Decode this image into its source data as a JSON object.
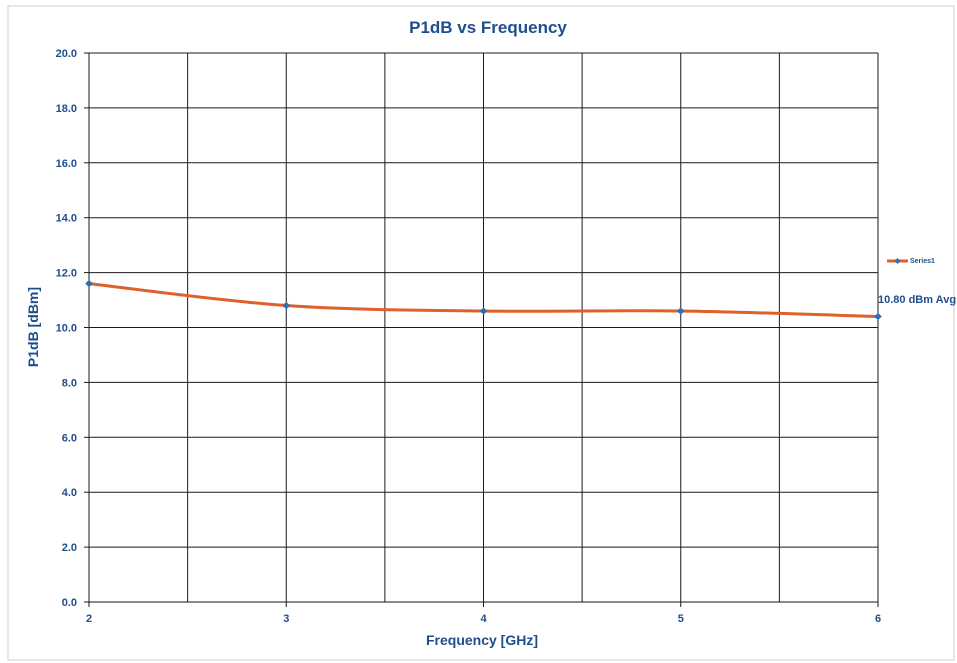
{
  "chart_data": {
    "type": "line",
    "title": "P1dB vs Frequency",
    "xlabel": "Frequency [GHz]",
    "ylabel": "P1dB [dBm]",
    "xlim": [
      2,
      6
    ],
    "ylim": [
      0,
      20
    ],
    "x_ticks": [
      "2",
      "3",
      "4",
      "5",
      "6"
    ],
    "y_ticks": [
      "0.0",
      "2.0",
      "4.0",
      "6.0",
      "8.0",
      "10.0",
      "12.0",
      "14.0",
      "16.0",
      "18.0",
      "20.0"
    ],
    "grid": true,
    "legend_position": "right",
    "series": [
      {
        "name": "Series1",
        "x": [
          2,
          3,
          4,
          5,
          6
        ],
        "y": [
          11.6,
          10.8,
          10.6,
          10.6,
          10.4
        ],
        "line_color": "#e0602a",
        "marker_color": "#2e6fb5"
      }
    ],
    "annotation": "10.80 dBm Avg"
  }
}
